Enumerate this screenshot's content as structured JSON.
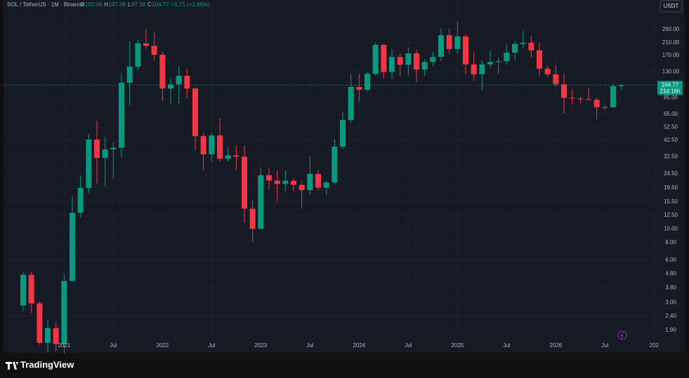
{
  "header": {
    "symbol": "SOL / TetherUS · 1M · Binance",
    "o": "O",
    "h": "H",
    "l": "L",
    "c": "C",
    "change": "+1.71 (+1.66%)"
  },
  "currency": "USDT",
  "countdown": "21d 16h",
  "brand": "TradingView",
  "chart_data": {
    "type": "candlestick",
    "up_color": "#089981",
    "down_color": "#f23645",
    "log_scale": true,
    "grid": true,
    "x": [
      "2020-08",
      "2020-09",
      "2020-10",
      "2020-11",
      "2020-12",
      "2021-01",
      "2021-02",
      "2021-03",
      "2021-04",
      "2021-05",
      "2021-06",
      "2021-07",
      "2021-08",
      "2021-09",
      "2021-10",
      "2021-11",
      "2021-12",
      "2022-01",
      "2022-02",
      "2022-03",
      "2022-04",
      "2022-05",
      "2022-06",
      "2022-07",
      "2022-08",
      "2022-09",
      "2022-10",
      "2022-11",
      "2022-12",
      "2023-01",
      "2023-02",
      "2023-03",
      "2023-04",
      "2023-05",
      "2023-06",
      "2023-07",
      "2023-08",
      "2023-09",
      "2023-10",
      "2023-11",
      "2023-12",
      "2024-01",
      "2024-02",
      "2024-03",
      "2024-04",
      "2024-05",
      "2024-06",
      "2024-07",
      "2024-08",
      "2024-09",
      "2024-10",
      "2024-11",
      "2024-12",
      "2025-01",
      "2025-02",
      "2025-03",
      "2025-04",
      "2025-05",
      "2025-06",
      "2025-07",
      "2025-08",
      "2025-09",
      "2025-10",
      "2025-11",
      "2025-12",
      "2026-01",
      "2026-02",
      "2026-03",
      "2026-04",
      "2026-05",
      "2026-06",
      "2026-07",
      "2026-08",
      "2026-09"
    ],
    "open": [
      2.85,
      4.71,
      2.95,
      1.55,
      1.97,
      1.52,
      4.26,
      13,
      19.5,
      43,
      31.9,
      36.6,
      37.6,
      109,
      141.6,
      207,
      199,
      172,
      99,
      106,
      122,
      99,
      45.5,
      33.8,
      46,
      31.4,
      33.2,
      32.5,
      13.9,
      10,
      24,
      22,
      20.8,
      21.9,
      20.5,
      18.8,
      24.5,
      19.6,
      21.3,
      38.3,
      59.3,
      101.6,
      97,
      126,
      202,
      130,
      166,
      146,
      176,
      135,
      153,
      166,
      237,
      189,
      232,
      147,
      125,
      147,
      153,
      155,
      178,
      205,
      209,
      185,
      137,
      125,
      106,
      85,
      84,
      83,
      82.5,
      73,
      72.8,
      103.06
    ],
    "high": [
      4.96,
      4.96,
      3.06,
      2.26,
      2.2,
      4.8,
      17,
      23.9,
      47,
      58.6,
      45,
      41,
      127,
      215,
      218,
      260,
      250,
      180,
      117,
      143,
      136,
      101,
      48,
      48,
      61,
      38,
      39,
      39,
      16,
      27,
      27,
      26,
      26,
      23,
      22,
      32.8,
      26,
      22,
      43,
      68,
      126,
      126,
      130,
      210,
      205,
      188,
      175,
      193,
      187,
      160,
      180,
      264,
      264,
      295,
      240,
      180,
      157,
      185,
      165,
      206,
      215,
      254,
      232,
      210,
      145,
      145,
      127,
      98,
      86,
      100,
      85,
      76,
      107,
      107.36
    ],
    "low": [
      2.6,
      2.53,
      1.5,
      1.33,
      1.35,
      1.3,
      4.2,
      12,
      18,
      21,
      20,
      22.5,
      32,
      75,
      133,
      190,
      155,
      81,
      76,
      77,
      85,
      36,
      26,
      30,
      30,
      30,
      26,
      11,
      8.1,
      9.9,
      19,
      15.7,
      18.5,
      18.5,
      14,
      17.5,
      18.7,
      17.3,
      20.7,
      37,
      56,
      79,
      95,
      122,
      117,
      116,
      122,
      123,
      110,
      122,
      143,
      155,
      175,
      175,
      125,
      112,
      96,
      140,
      126,
      146,
      155,
      191,
      165,
      122,
      119,
      102,
      66,
      76,
      78,
      82,
      60,
      70,
      72,
      97.38
    ],
    "close": [
      4.71,
      2.95,
      1.55,
      1.97,
      1.52,
      4.26,
      13,
      19.5,
      43,
      31.9,
      36.6,
      37.6,
      109,
      141.6,
      207,
      199,
      172,
      99,
      106,
      122,
      99,
      45.5,
      33.8,
      46,
      31.4,
      33.2,
      32.5,
      13.9,
      10,
      24,
      22,
      20.8,
      21.9,
      20.5,
      18.8,
      24.5,
      19.6,
      21.3,
      38.3,
      59.3,
      101.6,
      97,
      126,
      202,
      130,
      166,
      146,
      176,
      135,
      153,
      166,
      237,
      189,
      232,
      147,
      125,
      147,
      153,
      155,
      178,
      205,
      209,
      185,
      137,
      125,
      106,
      85,
      84,
      83,
      82.5,
      73,
      72.8,
      103.06,
      104.77
    ],
    "ylim": [
      1.62,
      421
    ],
    "yticks": [
      {
        "value": 260,
        "label": "260.00"
      },
      {
        "value": 210,
        "label": "210.00"
      },
      {
        "value": 170,
        "label": "170.00"
      },
      {
        "value": 130,
        "label": "130.00"
      },
      {
        "value": 85,
        "label": "85.00"
      },
      {
        "value": 65,
        "label": "65.00"
      },
      {
        "value": 52.5,
        "label": "52.50"
      },
      {
        "value": 42.5,
        "label": "42.50"
      },
      {
        "value": 32.5,
        "label": "32.50"
      },
      {
        "value": 24.5,
        "label": "24.50"
      },
      {
        "value": 19.5,
        "label": "19.50"
      },
      {
        "value": 15.5,
        "label": "15.50"
      },
      {
        "value": 12.5,
        "label": "12.50"
      },
      {
        "value": 10,
        "label": "10.00"
      },
      {
        "value": 8,
        "label": "8.00"
      },
      {
        "value": 6,
        "label": "6.00"
      },
      {
        "value": 4.8,
        "label": "4.80"
      },
      {
        "value": 3.8,
        "label": "3.80"
      },
      {
        "value": 3,
        "label": "3.00"
      },
      {
        "value": 2.4,
        "label": "2.40"
      },
      {
        "value": 1.9,
        "label": "1.90"
      }
    ],
    "xticks": [
      {
        "value": "2021-01",
        "label": "2021"
      },
      {
        "value": "2021-07",
        "label": "Jul"
      },
      {
        "value": "2022-01",
        "label": "2022"
      },
      {
        "value": "2022-07",
        "label": "Jul"
      },
      {
        "value": "2023-01",
        "label": "2023"
      },
      {
        "value": "2023-07",
        "label": "Jul"
      },
      {
        "value": "2024-01",
        "label": "2024"
      },
      {
        "value": "2024-07",
        "label": "Jul"
      },
      {
        "value": "2025-01",
        "label": "2025"
      },
      {
        "value": "2025-07",
        "label": "Jul"
      },
      {
        "value": "2026-01",
        "label": "2026"
      },
      {
        "value": "2026-07",
        "label": "Jul"
      },
      {
        "value": "2027-01",
        "label": "202"
      }
    ]
  }
}
